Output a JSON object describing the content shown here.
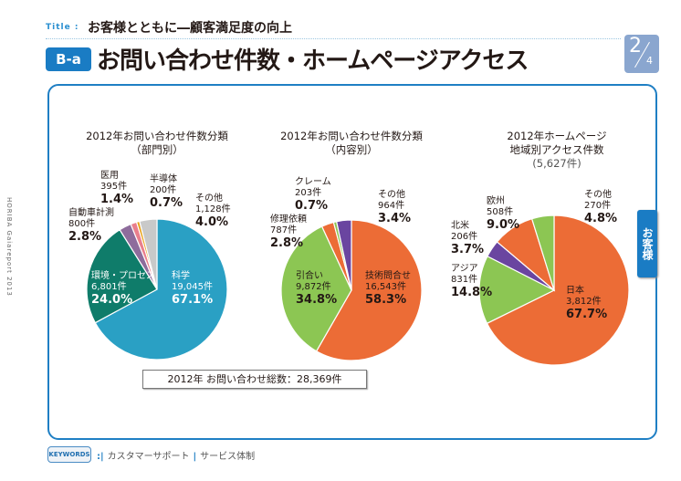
{
  "header": {
    "title_label": "Title :",
    "title": "お客様とともに―顧客満足度の向上",
    "badge": "B-a",
    "heading": "お問い合わせ件数・ホームページアクセス",
    "page_num": "2",
    "page_total": "4"
  },
  "side_text": "HORIBA Gaiareport 2013",
  "side_tab": "お客様",
  "total": "2012年 お問い合わせ総数：28,369件",
  "keywords": {
    "label": "KEYWORDS",
    "items": [
      "カスタマーサポート",
      "サービス体制"
    ]
  },
  "chart_data": [
    {
      "type": "pie",
      "title": [
        "2012年お問い合わせ件数分類",
        "（部門別）"
      ],
      "slices": [
        {
          "name": "科学",
          "count": "19,045件",
          "pct": 67.1,
          "pct_label": "67.1%",
          "color": "#2aa0c4"
        },
        {
          "name": "環境・プロセス",
          "count": "6,801件",
          "pct": 24.0,
          "pct_label": "24.0%",
          "color": "#0f7c6a"
        },
        {
          "name": "自動車計測",
          "count": "800件",
          "pct": 2.8,
          "pct_label": "2.8%",
          "color": "#8e6c9c"
        },
        {
          "name": "医用",
          "count": "395件",
          "pct": 1.4,
          "pct_label": "1.4%",
          "color": "#e97f8d"
        },
        {
          "name": "半導体",
          "count": "200件",
          "pct": 0.7,
          "pct_label": "0.7%",
          "color": "#e8a31c"
        },
        {
          "name": "その他",
          "count": "1,128件",
          "pct": 4.0,
          "pct_label": "4.0%",
          "color": "#c9c9c9"
        }
      ]
    },
    {
      "type": "pie",
      "title": [
        "2012年お問い合わせ件数分類",
        "（内容別）"
      ],
      "slices": [
        {
          "name": "技術問合せ",
          "count": "16,543件",
          "pct": 58.3,
          "pct_label": "58.3%",
          "color": "#ec6c36"
        },
        {
          "name": "引合い",
          "count": "9,872件",
          "pct": 34.8,
          "pct_label": "34.8%",
          "color": "#8cc653"
        },
        {
          "name": "修理依頼",
          "count": "787件",
          "pct": 2.8,
          "pct_label": "2.8%",
          "color": "#ec6c36"
        },
        {
          "name": "クレーム",
          "count": "203件",
          "pct": 0.7,
          "pct_label": "0.7%",
          "color": "#8cc653"
        },
        {
          "name": "その他",
          "count": "964件",
          "pct": 3.4,
          "pct_label": "3.4%",
          "color": "#6a45a0"
        }
      ]
    },
    {
      "type": "pie",
      "title": [
        "2012年ホームページ",
        "地域別アクセス件数",
        "(5,627件)"
      ],
      "slices": [
        {
          "name": "日本",
          "count": "3,812件",
          "pct": 67.7,
          "pct_label": "67.7%",
          "color": "#ec6c36"
        },
        {
          "name": "アジア",
          "count": "831件",
          "pct": 14.8,
          "pct_label": "14.8%",
          "color": "#8cc653"
        },
        {
          "name": "北米",
          "count": "206件",
          "pct": 3.7,
          "pct_label": "3.7%",
          "color": "#6a45a0"
        },
        {
          "name": "欧州",
          "count": "508件",
          "pct": 9.0,
          "pct_label": "9.0%",
          "color": "#ec6c36"
        },
        {
          "name": "その他",
          "count": "270件",
          "pct": 4.8,
          "pct_label": "4.8%",
          "color": "#8cc653"
        }
      ]
    }
  ]
}
